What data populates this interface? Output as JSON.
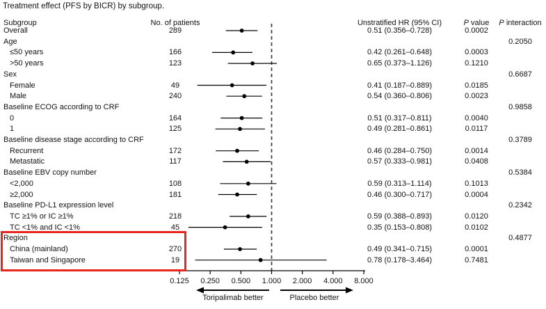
{
  "title": "Treatment effect (PFS by BICR) by subgroup.",
  "colors": {
    "text": "#111111",
    "marker": "#000000",
    "reference_line": "#3c3c3c",
    "highlight_box": "#e8241c"
  },
  "headers": {
    "subgroup": "Subgroup",
    "n": "No. of patients",
    "hr": "Unstratified HR (95% CI)",
    "p_value_italic": "P",
    "p_value_rest": " value",
    "p_interaction_italic": "P",
    "p_interaction_rest": " interaction"
  },
  "chart_data": {
    "type": "forest",
    "x_scale": "log2",
    "x_ticks": [
      {
        "label": "0.125",
        "value": 0.125
      },
      {
        "label": "0.250",
        "value": 0.25
      },
      {
        "label": "0.500",
        "value": 0.5
      },
      {
        "label": "1.000",
        "value": 1.0
      },
      {
        "label": "2.000",
        "value": 2.0
      },
      {
        "label": "4.000",
        "value": 4.0
      },
      {
        "label": "8.000",
        "value": 8.0
      }
    ],
    "reference_line": 1.0,
    "axis_annotations": {
      "left_arrow_label": "Toripalimab better",
      "right_arrow_label": "Placebo better"
    },
    "rows": [
      {
        "label": "Overall",
        "group": false,
        "n": "289",
        "hr": 0.51,
        "lo": 0.356,
        "hi": 0.728,
        "hr_text": "0.51 (0.356–0.728)",
        "p": "0.0002",
        "p_int": "",
        "highlight": false
      },
      {
        "label": "Age",
        "group": true,
        "p_int": "0.2050",
        "highlight": false
      },
      {
        "label": "≤50 years",
        "group": false,
        "n": "166",
        "hr": 0.42,
        "lo": 0.261,
        "hi": 0.648,
        "hr_text": "0.42 (0.261–0.648)",
        "p": "0.0003",
        "p_int": "",
        "highlight": false
      },
      {
        "label": ">50 years",
        "group": false,
        "n": "123",
        "hr": 0.65,
        "lo": 0.373,
        "hi": 1.126,
        "hr_text": "0.65 (0.373–1.126)",
        "p": "0.1210",
        "p_int": "",
        "highlight": false
      },
      {
        "label": "Sex",
        "group": true,
        "p_int": "0.6687",
        "highlight": false
      },
      {
        "label": "Female",
        "group": false,
        "n": "49",
        "hr": 0.41,
        "lo": 0.187,
        "hi": 0.889,
        "hr_text": "0.41 (0.187–0.889)",
        "p": "0.0185",
        "p_int": "",
        "highlight": false
      },
      {
        "label": "Male",
        "group": false,
        "n": "240",
        "hr": 0.54,
        "lo": 0.36,
        "hi": 0.806,
        "hr_text": "0.54 (0.360–0.806)",
        "p": "0.0023",
        "p_int": "",
        "highlight": false
      },
      {
        "label": "Baseline ECOG according to CRF",
        "group": true,
        "p_int": "0.9858",
        "highlight": false
      },
      {
        "label": "0",
        "group": false,
        "n": "164",
        "hr": 0.51,
        "lo": 0.317,
        "hi": 0.811,
        "hr_text": "0.51 (0.317–0.811)",
        "p": "0.0040",
        "p_int": "",
        "highlight": false
      },
      {
        "label": "1",
        "group": false,
        "n": "125",
        "hr": 0.49,
        "lo": 0.281,
        "hi": 0.861,
        "hr_text": "0.49 (0.281–0.861)",
        "p": "0.0117",
        "p_int": "",
        "highlight": false
      },
      {
        "label": "Baseline disease stage according to CRF",
        "group": true,
        "p_int": "0.3789",
        "highlight": false
      },
      {
        "label": "Recurrent",
        "group": false,
        "n": "172",
        "hr": 0.46,
        "lo": 0.284,
        "hi": 0.75,
        "hr_text": "0.46 (0.284–0.750)",
        "p": "0.0014",
        "p_int": "",
        "highlight": false
      },
      {
        "label": "Metastatic",
        "group": false,
        "n": "117",
        "hr": 0.57,
        "lo": 0.333,
        "hi": 0.981,
        "hr_text": "0.57 (0.333–0.981)",
        "p": "0.0408",
        "p_int": "",
        "highlight": false
      },
      {
        "label": "Baseline EBV copy number",
        "group": true,
        "p_int": "0.5384",
        "highlight": false
      },
      {
        "label": "<2,000",
        "group": false,
        "n": "108",
        "hr": 0.59,
        "lo": 0.313,
        "hi": 1.114,
        "hr_text": "0.59 (0.313–1.114)",
        "p": "0.1013",
        "p_int": "",
        "highlight": false
      },
      {
        "label": "≥2,000",
        "group": false,
        "n": "181",
        "hr": 0.46,
        "lo": 0.3,
        "hi": 0.717,
        "hr_text": "0.46 (0.300–0.717)",
        "p": "0.0004",
        "p_int": "",
        "highlight": false
      },
      {
        "label": "Baseline PD-L1 expression level",
        "group": true,
        "p_int": "0.2342",
        "highlight": false
      },
      {
        "label": "TC ≥1% or IC ≥1%",
        "group": false,
        "n": "218",
        "hr": 0.59,
        "lo": 0.388,
        "hi": 0.893,
        "hr_text": "0.59 (0.388–0.893)",
        "p": "0.0120",
        "p_int": "",
        "highlight": false
      },
      {
        "label": "TC <1% and IC <1%",
        "group": false,
        "n": "45",
        "hr": 0.35,
        "lo": 0.153,
        "hi": 0.808,
        "hr_text": "0.35 (0.153–0.808)",
        "p": "0.0102",
        "p_int": "",
        "highlight": false
      },
      {
        "label": "Region",
        "group": true,
        "p_int": "0.4877",
        "highlight": true
      },
      {
        "label": "China (mainland)",
        "group": false,
        "n": "270",
        "hr": 0.49,
        "lo": 0.341,
        "hi": 0.715,
        "hr_text": "0.49 (0.341–0.715)",
        "p": "0.0001",
        "p_int": "",
        "highlight": true
      },
      {
        "label": "Taiwan and Singapore",
        "group": false,
        "n": "19",
        "hr": 0.78,
        "lo": 0.178,
        "hi": 3.464,
        "hr_text": "0.78 (0.178–3.464)",
        "p": "0.7481",
        "p_int": "",
        "highlight": true
      }
    ]
  }
}
